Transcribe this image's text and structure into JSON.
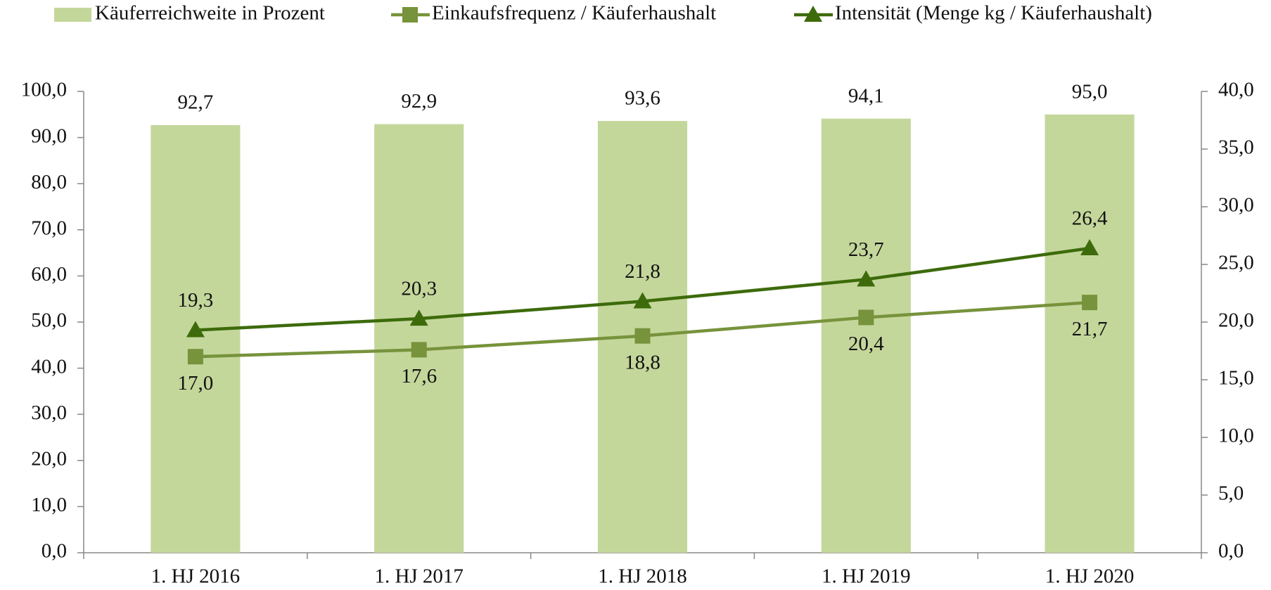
{
  "chart_data": {
    "type": "bar",
    "categories": [
      "1. HJ 2016",
      "1. HJ 2017",
      "1. HJ 2018",
      "1. HJ 2019",
      "1. HJ 2020"
    ],
    "series": [
      {
        "name": "Käuferreichweite in Prozent",
        "type": "bar",
        "color": "#c4d79b",
        "axis": "y",
        "values": [
          92.7,
          92.9,
          93.6,
          94.1,
          95.0
        ],
        "value_labels": [
          "92,7",
          "92,9",
          "93,6",
          "94,1",
          "95,0"
        ],
        "label_position": "above"
      },
      {
        "name": "Einkaufsfrequenz / Käuferhaushalt",
        "type": "line",
        "marker": "square",
        "color": "#77933c",
        "axis": "y2",
        "values": [
          17.0,
          17.6,
          18.8,
          20.4,
          21.7
        ],
        "value_labels": [
          "17,0",
          "17,6",
          "18,8",
          "20,4",
          "21,7"
        ],
        "label_position": "below"
      },
      {
        "name": "Intensität (Menge kg / Käuferhaushalt)",
        "type": "line",
        "marker": "triangle",
        "color": "#3d6b0b",
        "axis": "y2",
        "values": [
          19.3,
          20.3,
          21.8,
          23.7,
          26.4
        ],
        "value_labels": [
          "19,3",
          "20,3",
          "21,8",
          "23,7",
          "26,4"
        ],
        "label_position": "above"
      }
    ],
    "ylim": [
      0,
      100
    ],
    "yticks": [
      {
        "value": 0,
        "label": "0,0"
      },
      {
        "value": 10,
        "label": "10,0"
      },
      {
        "value": 20,
        "label": "20,0"
      },
      {
        "value": 30,
        "label": "30,0"
      },
      {
        "value": 40,
        "label": "40,0"
      },
      {
        "value": 50,
        "label": "50,0"
      },
      {
        "value": 60,
        "label": "60,0"
      },
      {
        "value": 70,
        "label": "70,0"
      },
      {
        "value": 80,
        "label": "80,0"
      },
      {
        "value": 90,
        "label": "90,0"
      },
      {
        "value": 100,
        "label": "100,0"
      }
    ],
    "y2lim": [
      0,
      40
    ],
    "y2ticks": [
      {
        "value": 0,
        "label": "0,0"
      },
      {
        "value": 5,
        "label": "5,0"
      },
      {
        "value": 10,
        "label": "10,0"
      },
      {
        "value": 15,
        "label": "15,0"
      },
      {
        "value": 20,
        "label": "20,0"
      },
      {
        "value": 25,
        "label": "25,0"
      },
      {
        "value": 30,
        "label": "30,0"
      },
      {
        "value": 35,
        "label": "35,0"
      },
      {
        "value": 40,
        "label": "40,0"
      }
    ],
    "legend": "top",
    "grid": false
  }
}
